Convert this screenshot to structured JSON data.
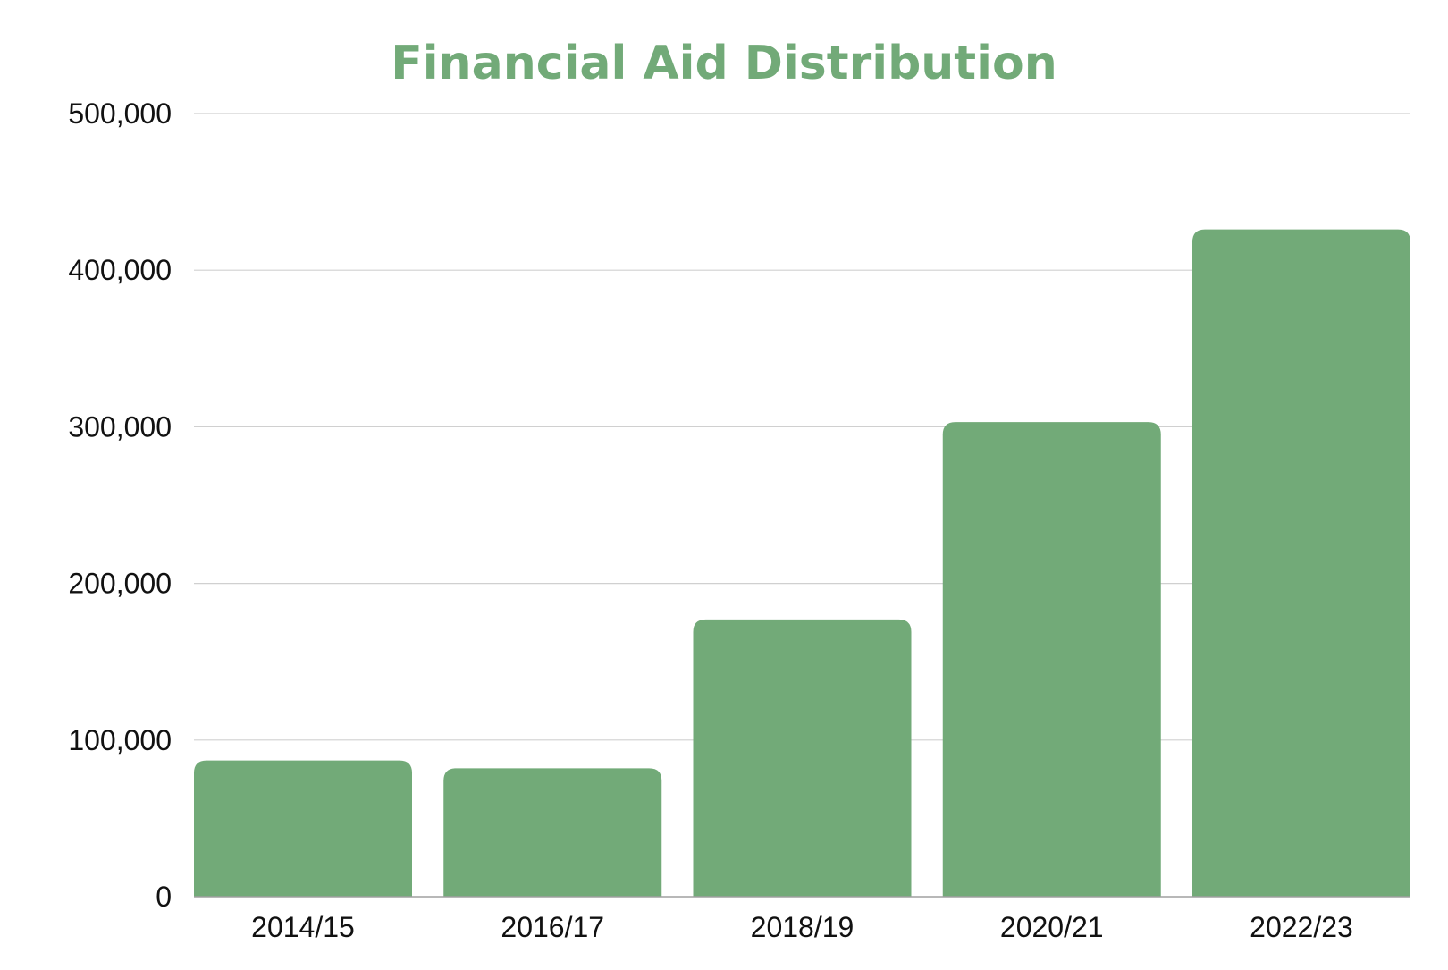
{
  "colors": {
    "bar": "#72aa78",
    "title": "#72aa78",
    "grid": "#d0d0d0",
    "axis": "#a0a0a0",
    "text": "#111111",
    "background": "#ffffff"
  },
  "chart_data": {
    "type": "bar",
    "title": "Financial Aid Distribution",
    "xlabel": "",
    "ylabel": "",
    "categories": [
      "2014/15",
      "2016/17",
      "2018/19",
      "2020/21",
      "2022/23"
    ],
    "values": [
      87000,
      82000,
      177000,
      303000,
      426000
    ],
    "ylim": [
      0,
      500000
    ],
    "yticks": [
      0,
      100000,
      200000,
      300000,
      400000,
      500000
    ],
    "ytick_labels": [
      "0",
      "100,000",
      "200,000",
      "300,000",
      "400,000",
      "500,000"
    ],
    "grid": true,
    "legend": "none"
  }
}
